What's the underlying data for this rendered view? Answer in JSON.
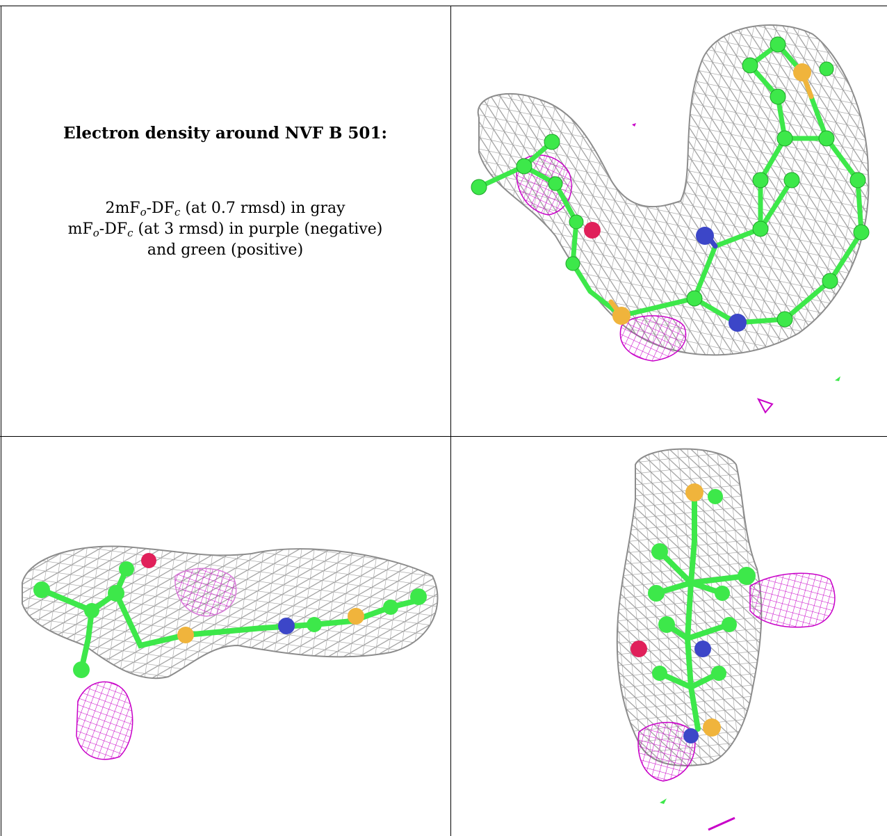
{
  "caption": {
    "title": "Electron density around NVF B 501:",
    "line1": {
      "pre": "2mF",
      "sub1": "o",
      "mid": "-DF",
      "sub2": "c",
      "post": " (at 0.7 rmsd) in gray"
    },
    "line2": {
      "pre": "mF",
      "sub1": "o",
      "mid": "-DF",
      "sub2": "c",
      "post": " (at 3 rmsd) in purple (negative)"
    },
    "line3": "and green (positive)"
  },
  "colors": {
    "mesh_gray": "#9a9a9a",
    "mesh_purple": "#c800c8",
    "carbon_green": "#3de84a",
    "nitrogen_blue": "#3c46c8",
    "oxygen_red": "#e0205a",
    "sulfur_yellow": "#f0b43c"
  },
  "panels": [
    {
      "icon": "ligand-top-view-icon"
    },
    {
      "icon": "ligand-side-view-icon"
    },
    {
      "icon": "ligand-end-view-icon"
    }
  ]
}
